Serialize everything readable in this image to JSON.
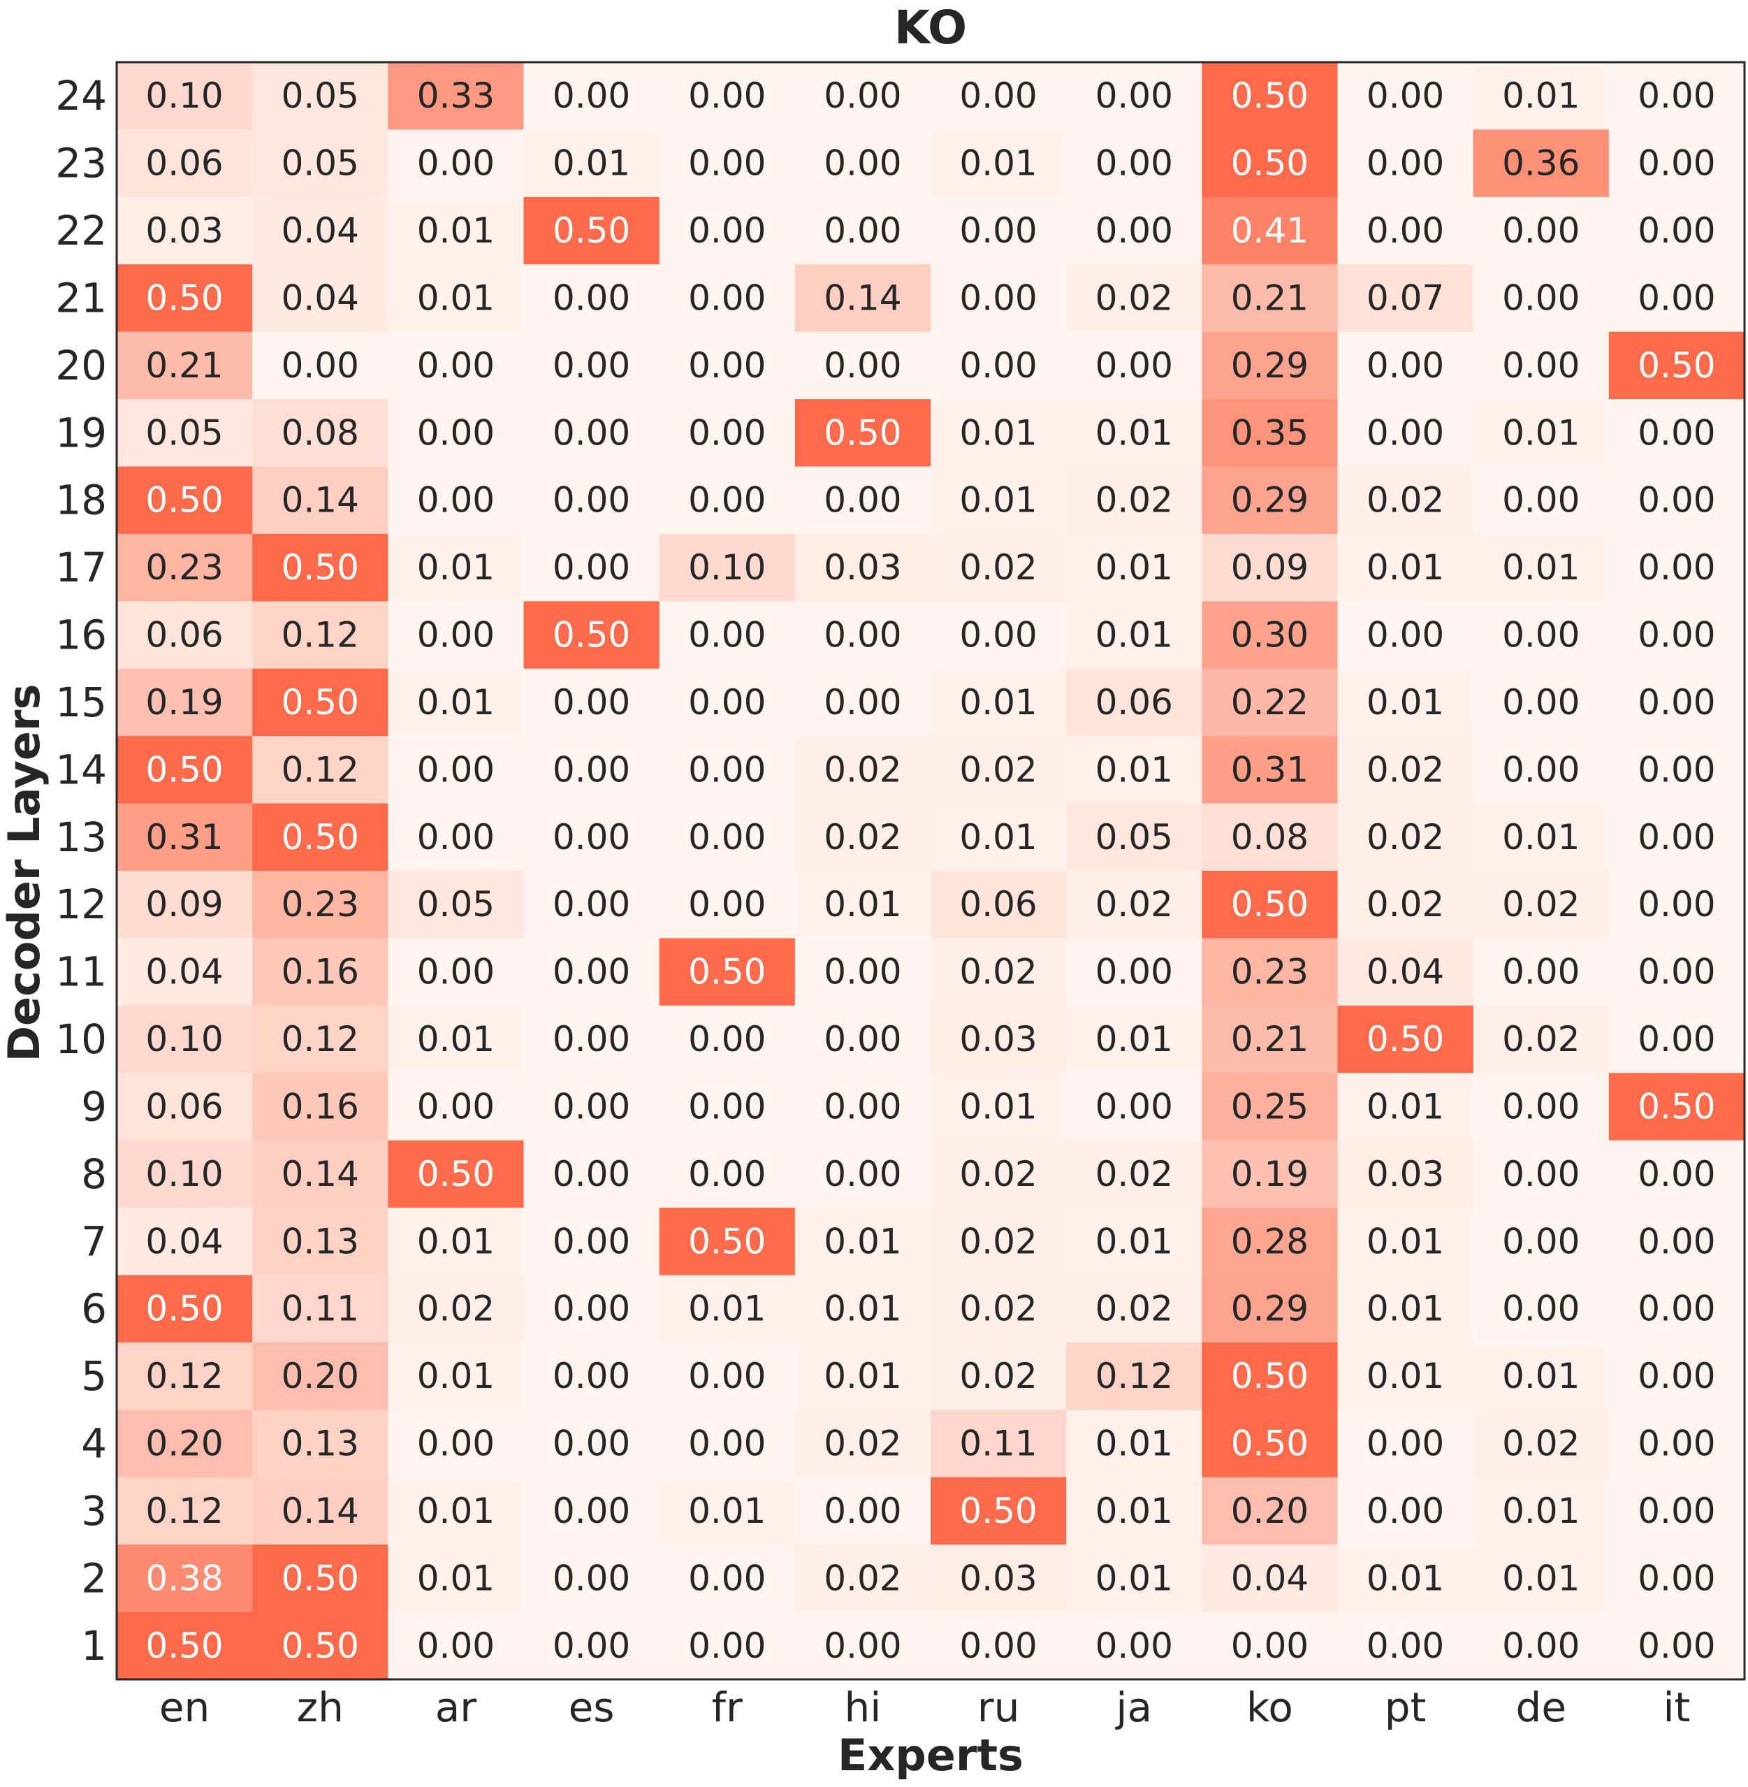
{
  "chart_data": {
    "type": "heatmap",
    "title": "KO",
    "xlabel": "Experts",
    "ylabel": "Decoder Layers",
    "x_categories": [
      "en",
      "zh",
      "ar",
      "es",
      "fr",
      "hi",
      "ru",
      "ja",
      "ko",
      "pt",
      "de",
      "it"
    ],
    "y_categories": [
      "24",
      "23",
      "22",
      "21",
      "20",
      "19",
      "18",
      "17",
      "16",
      "15",
      "14",
      "13",
      "12",
      "11",
      "10",
      "9",
      "8",
      "7",
      "6",
      "5",
      "4",
      "3",
      "2",
      "1"
    ],
    "values": [
      [
        "0.10",
        "0.05",
        "0.33",
        "0.00",
        "0.00",
        "0.00",
        "0.00",
        "0.00",
        "0.50",
        "0.00",
        "0.01",
        "0.00"
      ],
      [
        "0.06",
        "0.05",
        "0.00",
        "0.01",
        "0.00",
        "0.00",
        "0.01",
        "0.00",
        "0.50",
        "0.00",
        "0.36",
        "0.00"
      ],
      [
        "0.03",
        "0.04",
        "0.01",
        "0.50",
        "0.00",
        "0.00",
        "0.00",
        "0.00",
        "0.41",
        "0.00",
        "0.00",
        "0.00"
      ],
      [
        "0.50",
        "0.04",
        "0.01",
        "0.00",
        "0.00",
        "0.14",
        "0.00",
        "0.02",
        "0.21",
        "0.07",
        "0.00",
        "0.00"
      ],
      [
        "0.21",
        "0.00",
        "0.00",
        "0.00",
        "0.00",
        "0.00",
        "0.00",
        "0.00",
        "0.29",
        "0.00",
        "0.00",
        "0.50"
      ],
      [
        "0.05",
        "0.08",
        "0.00",
        "0.00",
        "0.00",
        "0.50",
        "0.01",
        "0.01",
        "0.35",
        "0.00",
        "0.01",
        "0.00"
      ],
      [
        "0.50",
        "0.14",
        "0.00",
        "0.00",
        "0.00",
        "0.00",
        "0.01",
        "0.02",
        "0.29",
        "0.02",
        "0.00",
        "0.00"
      ],
      [
        "0.23",
        "0.50",
        "0.01",
        "0.00",
        "0.10",
        "0.03",
        "0.02",
        "0.01",
        "0.09",
        "0.01",
        "0.01",
        "0.00"
      ],
      [
        "0.06",
        "0.12",
        "0.00",
        "0.50",
        "0.00",
        "0.00",
        "0.00",
        "0.01",
        "0.30",
        "0.00",
        "0.00",
        "0.00"
      ],
      [
        "0.19",
        "0.50",
        "0.01",
        "0.00",
        "0.00",
        "0.00",
        "0.01",
        "0.06",
        "0.22",
        "0.01",
        "0.00",
        "0.00"
      ],
      [
        "0.50",
        "0.12",
        "0.00",
        "0.00",
        "0.00",
        "0.02",
        "0.02",
        "0.01",
        "0.31",
        "0.02",
        "0.00",
        "0.00"
      ],
      [
        "0.31",
        "0.50",
        "0.00",
        "0.00",
        "0.00",
        "0.02",
        "0.01",
        "0.05",
        "0.08",
        "0.02",
        "0.01",
        "0.00"
      ],
      [
        "0.09",
        "0.23",
        "0.05",
        "0.00",
        "0.00",
        "0.01",
        "0.06",
        "0.02",
        "0.50",
        "0.02",
        "0.02",
        "0.00"
      ],
      [
        "0.04",
        "0.16",
        "0.00",
        "0.00",
        "0.50",
        "0.00",
        "0.02",
        "0.00",
        "0.23",
        "0.04",
        "0.00",
        "0.00"
      ],
      [
        "0.10",
        "0.12",
        "0.01",
        "0.00",
        "0.00",
        "0.00",
        "0.03",
        "0.01",
        "0.21",
        "0.50",
        "0.02",
        "0.00"
      ],
      [
        "0.06",
        "0.16",
        "0.00",
        "0.00",
        "0.00",
        "0.00",
        "0.01",
        "0.00",
        "0.25",
        "0.01",
        "0.00",
        "0.50"
      ],
      [
        "0.10",
        "0.14",
        "0.50",
        "0.00",
        "0.00",
        "0.00",
        "0.02",
        "0.02",
        "0.19",
        "0.03",
        "0.00",
        "0.00"
      ],
      [
        "0.04",
        "0.13",
        "0.01",
        "0.00",
        "0.50",
        "0.01",
        "0.02",
        "0.01",
        "0.28",
        "0.01",
        "0.00",
        "0.00"
      ],
      [
        "0.50",
        "0.11",
        "0.02",
        "0.00",
        "0.01",
        "0.01",
        "0.02",
        "0.02",
        "0.29",
        "0.01",
        "0.00",
        "0.00"
      ],
      [
        "0.12",
        "0.20",
        "0.01",
        "0.00",
        "0.00",
        "0.01",
        "0.02",
        "0.12",
        "0.50",
        "0.01",
        "0.01",
        "0.00"
      ],
      [
        "0.20",
        "0.13",
        "0.00",
        "0.00",
        "0.00",
        "0.02",
        "0.11",
        "0.01",
        "0.50",
        "0.00",
        "0.02",
        "0.00"
      ],
      [
        "0.12",
        "0.14",
        "0.01",
        "0.00",
        "0.01",
        "0.00",
        "0.50",
        "0.01",
        "0.20",
        "0.00",
        "0.01",
        "0.00"
      ],
      [
        "0.38",
        "0.50",
        "0.01",
        "0.00",
        "0.00",
        "0.02",
        "0.03",
        "0.01",
        "0.04",
        "0.01",
        "0.01",
        "0.00"
      ],
      [
        "0.50",
        "0.50",
        "0.00",
        "0.00",
        "0.00",
        "0.00",
        "0.00",
        "0.00",
        "0.00",
        "0.00",
        "0.00",
        "0.00"
      ]
    ],
    "value_range": [
      0,
      0.5
    ],
    "colormap": {
      "low": "#fff5f0",
      "high": "#fb6a4a"
    },
    "text_color_dark": "#262626",
    "text_color_light": "#ffffff",
    "grid": false,
    "legend": "none"
  }
}
